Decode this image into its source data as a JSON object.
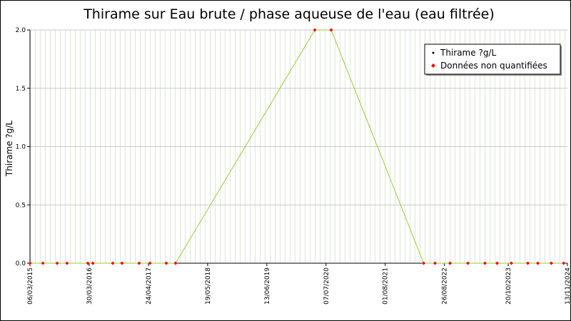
{
  "chart_data": {
    "type": "line",
    "title": "Thirame sur Eau brute / phase aqueuse de l'eau (eau filtrée)",
    "ylabel": "Thirame ?g/L",
    "x": [
      "2015-03-06",
      "2015-05-30",
      "2015-09-01",
      "2015-11-05",
      "2016-03-21",
      "2016-04-23",
      "2016-09-01",
      "2016-11-01",
      "2017-02-22",
      "2017-05-04",
      "2017-08-20",
      "2017-10-20",
      "2020-04-24",
      "2020-08-10",
      "2022-04-11",
      "2022-06-25",
      "2022-10-02",
      "2023-01-27",
      "2023-05-20",
      "2023-08-08",
      "2023-11-10",
      "2024-02-26",
      "2024-05-02",
      "2024-07-30",
      "2024-10-19"
    ],
    "series": [
      {
        "name": "Thirame ?g/L",
        "color": "#99cc33",
        "marker_color": "#000000",
        "values": [
          0,
          0,
          0,
          0,
          0,
          0,
          0,
          0,
          0,
          0,
          0,
          0,
          2,
          2,
          0,
          0,
          0,
          0,
          0,
          0,
          0,
          0,
          0,
          0,
          0
        ]
      },
      {
        "name": "Données non quantifiées",
        "color": "#ff0000",
        "values": [
          0,
          0,
          0,
          0,
          0,
          0,
          0,
          0,
          0,
          0,
          0,
          0,
          2,
          2,
          0,
          0,
          0,
          0,
          0,
          0,
          0,
          0,
          0,
          0,
          0
        ]
      }
    ],
    "xlim": [
      "2015-03-06",
      "2024-11-13"
    ],
    "xticks": [
      {
        "value": "2015-03-06",
        "label": "06/03/2015"
      },
      {
        "value": "2016-03-30",
        "label": "30/03/2016"
      },
      {
        "value": "2017-04-24",
        "label": "24/04/2017"
      },
      {
        "value": "2018-05-19",
        "label": "19/05/2018"
      },
      {
        "value": "2019-06-13",
        "label": "13/06/2019"
      },
      {
        "value": "2020-07-07",
        "label": "07/07/2020"
      },
      {
        "value": "2021-08-01",
        "label": "01/08/2021"
      },
      {
        "value": "2022-08-26",
        "label": "26/08/2022"
      },
      {
        "value": "2023-10-20",
        "label": "20/10/2023"
      },
      {
        "value": "2024-11-13",
        "label": "13/11/2024"
      }
    ],
    "ylim": [
      0,
      2
    ],
    "yticks": [
      {
        "value": 0,
        "label": "0.0"
      },
      {
        "value": 0.5,
        "label": "0.5"
      },
      {
        "value": 1,
        "label": "1.0"
      },
      {
        "value": 1.5,
        "label": "1.5"
      },
      {
        "value": 2,
        "label": "2.0"
      }
    ],
    "grid": true,
    "legend": "upper right"
  }
}
